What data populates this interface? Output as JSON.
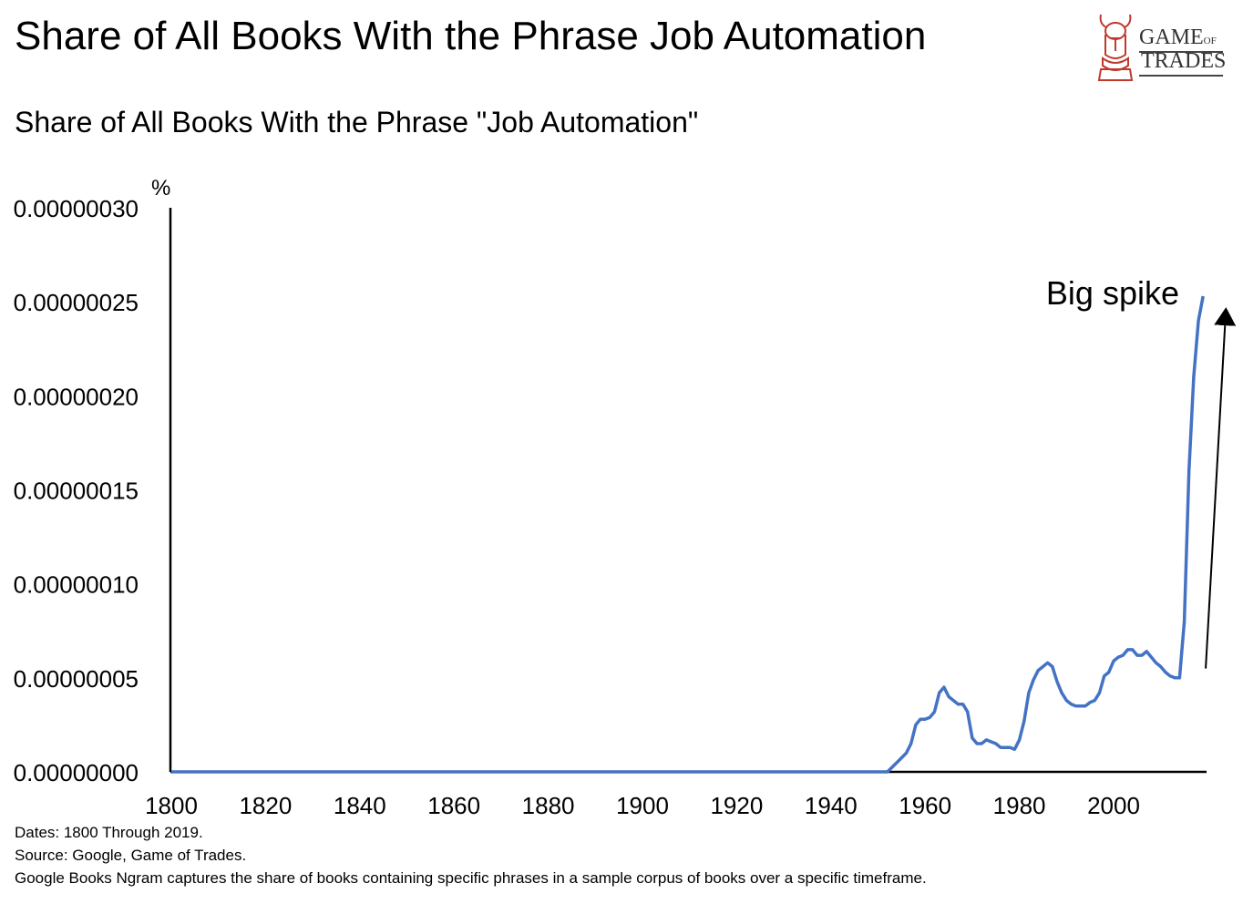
{
  "header": {
    "title": "Share of All Books With the Phrase Job Automation"
  },
  "logo": {
    "line1": "GAME",
    "line1_small": "OF",
    "line2": "TRADES",
    "icon": "viking-helmet-icon",
    "color": "#c0392b"
  },
  "chart_data": {
    "type": "line",
    "title": "Share of All Books With the Phrase \"Job Automation\"",
    "ylabel": "%",
    "xlabel": "",
    "xlim": [
      1800,
      2019
    ],
    "ylim": [
      0,
      3e-07
    ],
    "x_ticks": [
      "1800",
      "1820",
      "1840",
      "1860",
      "1880",
      "1900",
      "1920",
      "1940",
      "1960",
      "1980",
      "2000"
    ],
    "y_ticks": [
      "0.00000000",
      "0.00000005",
      "0.00000010",
      "0.00000015",
      "0.00000020",
      "0.00000025",
      "0.00000030"
    ],
    "grid": false,
    "line_color": "#4472c4",
    "series": [
      {
        "x": [
          1800,
          1952,
          1954,
          1956,
          1957,
          1958,
          1959,
          1960,
          1961,
          1962,
          1963,
          1964,
          1965,
          1966,
          1967,
          1968,
          1969,
          1970,
          1971,
          1972,
          1973,
          1974,
          1975,
          1976,
          1977,
          1978,
          1979,
          1980,
          1981,
          1982,
          1983,
          1984,
          1985,
          1986,
          1987,
          1988,
          1989,
          1990,
          1991,
          1992,
          1993,
          1994,
          1995,
          1996,
          1997,
          1998,
          1999,
          2000,
          2001,
          2002,
          2003,
          2004,
          2005,
          2006,
          2007,
          2008,
          2009,
          2010,
          2011,
          2012,
          2013,
          2014,
          2015,
          2016,
          2017,
          2018,
          2019
        ],
        "values": [
          0,
          0,
          5e-09,
          1e-08,
          1.5e-08,
          2.5e-08,
          2.8e-08,
          2.8e-08,
          2.9e-08,
          3.2e-08,
          4.2e-08,
          4.5e-08,
          4e-08,
          3.8e-08,
          3.6e-08,
          3.6e-08,
          3.2e-08,
          1.8e-08,
          1.5e-08,
          1.5e-08,
          1.7e-08,
          1.6e-08,
          1.5e-08,
          1.3e-08,
          1.3e-08,
          1.3e-08,
          1.2e-08,
          1.7e-08,
          2.7e-08,
          4.2e-08,
          4.9e-08,
          5.4e-08,
          5.6e-08,
          5.8e-08,
          5.6e-08,
          4.8e-08,
          4.2e-08,
          3.8e-08,
          3.6e-08,
          3.5e-08,
          3.5e-08,
          3.5e-08,
          3.7e-08,
          3.8e-08,
          4.2e-08,
          5.1e-08,
          5.3e-08,
          5.9e-08,
          6.1e-08,
          6.2e-08,
          6.5e-08,
          6.5e-08,
          6.2e-08,
          6.2e-08,
          6.4e-08,
          6.1e-08,
          5.8e-08,
          5.6e-08,
          5.3e-08,
          5.1e-08,
          5e-08,
          5e-08,
          8e-08,
          1.6e-07,
          2.1e-07,
          2.4e-07,
          2.53e-07
        ]
      }
    ],
    "annotation": {
      "text": "Big spike",
      "arrow_from": [
        2018,
        5.5e-08
      ],
      "arrow_to": [
        2019.5,
        2.5e-07
      ]
    }
  },
  "footnotes": [
    "Dates: 1800 Through 2019.",
    "Source: Google, Game of Trades.",
    "Google Books Ngram captures the share of books containing specific phrases in a sample corpus of books over a specific timeframe."
  ]
}
